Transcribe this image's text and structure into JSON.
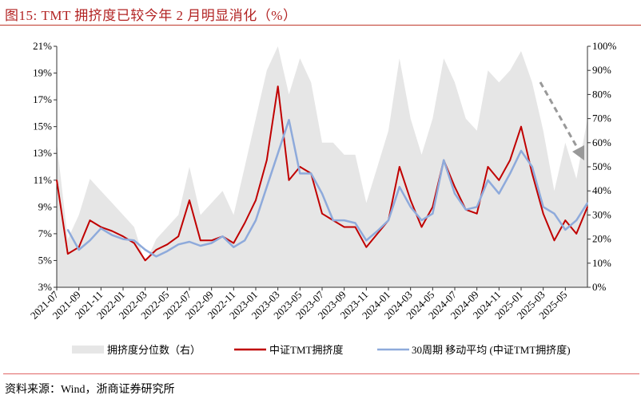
{
  "title": "图15:  TMT 拥挤度已较今年 2 月明显消化（%）",
  "source": "资料来源：Wind，浙商证券研究所",
  "chart_data": {
    "type": "line",
    "x": [
      "2021-07",
      "2021-08",
      "2021-09",
      "2021-10",
      "2021-11",
      "2021-12",
      "2022-01",
      "2022-02",
      "2022-03",
      "2022-04",
      "2022-05",
      "2022-06",
      "2022-07",
      "2022-08",
      "2022-09",
      "2022-10",
      "2022-11",
      "2022-12",
      "2023-01",
      "2023-02",
      "2023-03",
      "2023-04",
      "2023-05",
      "2023-06",
      "2023-07",
      "2023-08",
      "2023-09",
      "2023-10",
      "2023-11",
      "2023-12",
      "2024-01",
      "2024-02",
      "2024-03",
      "2024-04",
      "2024-05",
      "2024-06",
      "2024-07",
      "2024-08",
      "2024-09",
      "2024-10",
      "2024-11",
      "2024-12",
      "2025-01",
      "2025-02",
      "2025-03",
      "2025-04",
      "2025-05",
      "2025-06",
      "2025-07"
    ],
    "x_tick_labels": [
      "2021-07",
      "2021-09",
      "2021-11",
      "2022-01",
      "2022-03",
      "2022-05",
      "2022-07",
      "2022-09",
      "2022-11",
      "2023-01",
      "2023-03",
      "2023-05",
      "2023-07",
      "2023-09",
      "2023-11",
      "2024-01",
      "2024-03",
      "2024-05",
      "2024-07",
      "2024-09",
      "2024-11",
      "2025-01",
      "2025-03",
      "2025-05"
    ],
    "y_left": {
      "range": [
        3,
        21
      ],
      "ticks": [
        "3%",
        "5%",
        "7%",
        "9%",
        "11%",
        "13%",
        "15%",
        "17%",
        "19%",
        "21%"
      ]
    },
    "y_right": {
      "range": [
        0,
        100
      ],
      "ticks": [
        "0%",
        "10%",
        "20%",
        "30%",
        "40%",
        "50%",
        "60%",
        "70%",
        "80%",
        "90%",
        "100%"
      ]
    },
    "series": [
      {
        "name": "拥挤度分位数（右）",
        "type": "area",
        "axis": "right",
        "color": "#E6E6E6",
        "values": [
          60,
          20,
          30,
          45,
          40,
          35,
          30,
          25,
          10,
          20,
          25,
          30,
          50,
          30,
          35,
          40,
          30,
          50,
          70,
          90,
          100,
          80,
          95,
          85,
          60,
          60,
          55,
          55,
          35,
          50,
          65,
          95,
          70,
          55,
          70,
          95,
          85,
          70,
          65,
          90,
          85,
          90,
          98,
          85,
          65,
          40,
          60,
          45,
          70
        ]
      },
      {
        "name": "中证TMT拥挤度",
        "type": "line",
        "axis": "left",
        "color": "#C00000",
        "values": [
          11.0,
          5.5,
          6.0,
          8.0,
          7.5,
          7.2,
          6.8,
          6.3,
          5.0,
          5.8,
          6.2,
          6.8,
          9.5,
          6.5,
          6.5,
          6.8,
          6.3,
          7.8,
          9.5,
          12.5,
          18.0,
          11.0,
          12.0,
          11.5,
          8.5,
          8.0,
          7.5,
          7.5,
          6.0,
          7.0,
          8.0,
          12.0,
          9.5,
          7.5,
          9.0,
          12.5,
          10.5,
          8.8,
          8.5,
          12.0,
          11.0,
          12.5,
          15.0,
          11.5,
          8.5,
          6.5,
          8.0,
          7.0,
          9.0
        ]
      },
      {
        "name": "30周期 移动平均 (中证TMT拥挤度)",
        "type": "line",
        "axis": "left",
        "color": "#8EAADB",
        "values": [
          null,
          7.3,
          5.8,
          6.5,
          7.4,
          6.9,
          6.6,
          6.5,
          5.8,
          5.3,
          5.7,
          6.2,
          6.4,
          6.1,
          6.3,
          6.8,
          6.0,
          6.5,
          8.0,
          10.5,
          13.0,
          15.5,
          11.5,
          11.5,
          10.0,
          8.0,
          8.0,
          7.8,
          6.5,
          7.2,
          8.0,
          10.5,
          9.0,
          8.0,
          8.5,
          12.5,
          10.0,
          8.8,
          9.0,
          11.0,
          10.0,
          11.5,
          13.2,
          12.0,
          9.0,
          8.5,
          7.3,
          8.0,
          9.3
        ]
      }
    ],
    "legend": "bottom",
    "grid": false
  }
}
